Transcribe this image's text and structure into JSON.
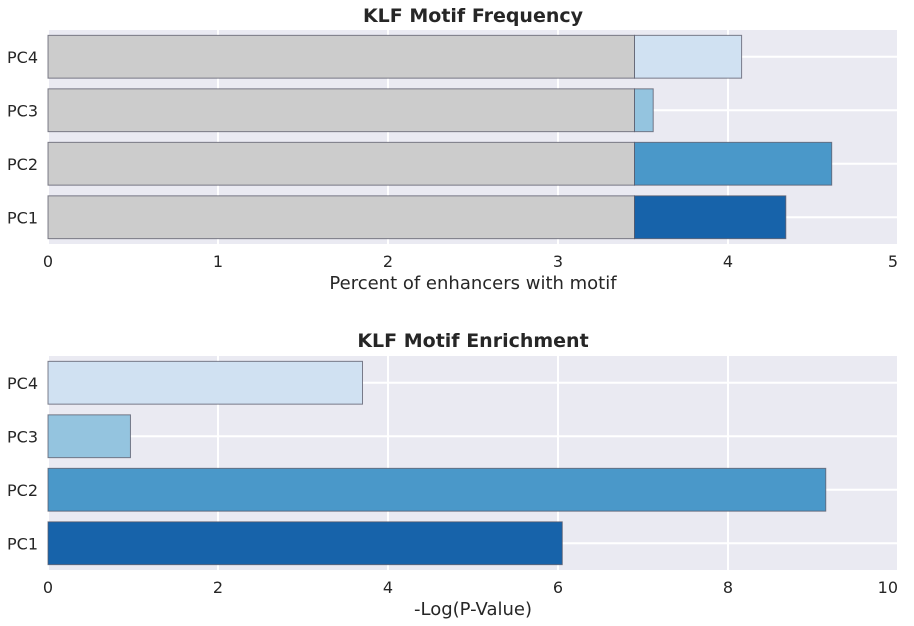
{
  "colors": {
    "background": "#eaeaf2",
    "grid": "#ffffff",
    "baseline_bar": "#cccccc",
    "bar_edge": "#555566"
  },
  "chart_data": [
    {
      "type": "bar",
      "orientation": "horizontal",
      "stacked": true,
      "title": "KLF Motif Frequency",
      "xlabel": "Percent of enhancers with motif",
      "ylabel": "",
      "categories": [
        "PC1",
        "PC2",
        "PC3",
        "PC4"
      ],
      "xlim": [
        0,
        5
      ],
      "xticks": [
        "0",
        "1",
        "2",
        "3",
        "4",
        "5"
      ],
      "grid": true,
      "series": [
        {
          "color": "#cccccc",
          "values": [
            3.45,
            3.45,
            3.45,
            3.45
          ]
        },
        {
          "values": [
            0.89,
            1.16,
            0.11,
            0.63
          ],
          "colors": [
            "#1763aa",
            "#4a98c9",
            "#94c4df",
            "#d0e1f2"
          ]
        }
      ]
    },
    {
      "type": "bar",
      "orientation": "horizontal",
      "title": "KLF Motif Enrichment",
      "xlabel": "-Log(P-Value)",
      "ylabel": "",
      "categories": [
        "PC1",
        "PC2",
        "PC3",
        "PC4"
      ],
      "xlim": [
        0,
        10
      ],
      "xticks": [
        "0",
        "2",
        "4",
        "6",
        "8",
        "10"
      ],
      "grid": true,
      "values": [
        6.05,
        9.15,
        0.97,
        3.7
      ],
      "colors": [
        "#1763aa",
        "#4a98c9",
        "#94c4df",
        "#d0e1f2"
      ]
    }
  ]
}
